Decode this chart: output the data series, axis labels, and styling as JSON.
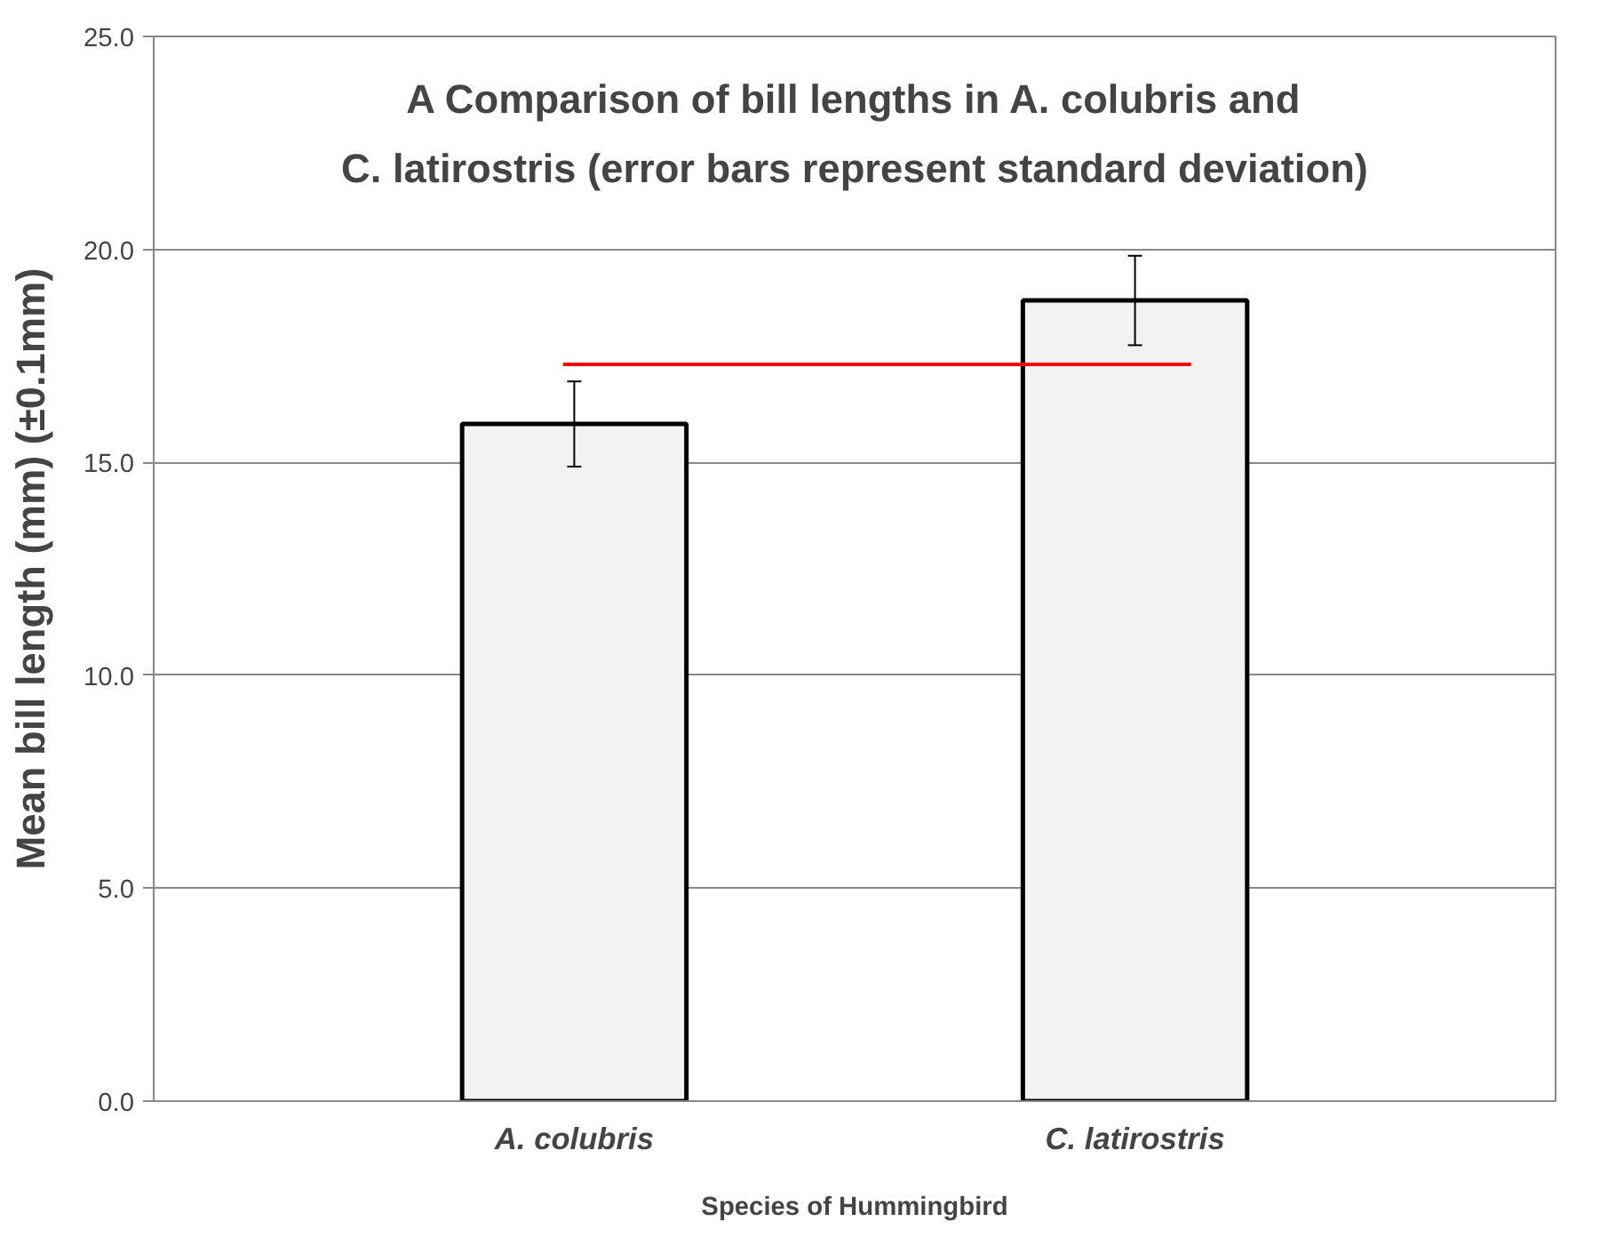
{
  "chart_data": {
    "type": "bar",
    "title": "A Comparison of bill lengths in A. colubris and\nC. latirostris (error bars represent standard deviation)",
    "xlabel": "Species of Hummingbird",
    "ylabel": "Mean bill length (mm) (±0.1mm)",
    "categories": [
      "A. colubris",
      "C. latirostris"
    ],
    "values": [
      15.9,
      18.8
    ],
    "errors": [
      1.0,
      1.05
    ],
    "color": "#f2f2f2",
    "ylim": [
      0,
      25
    ],
    "yticks": [
      {
        "value": 0,
        "label": "0.0"
      },
      {
        "value": 5,
        "label": "5.0"
      },
      {
        "value": 10,
        "label": "10.0"
      },
      {
        "value": 15,
        "label": "15.0"
      },
      {
        "value": 20,
        "label": "20.0"
      },
      {
        "value": 25,
        "label": "25.0"
      }
    ],
    "grid": "y",
    "ref_lines": [
      {
        "axis": "y",
        "value": 17.3,
        "color": "#ff0000"
      }
    ]
  }
}
